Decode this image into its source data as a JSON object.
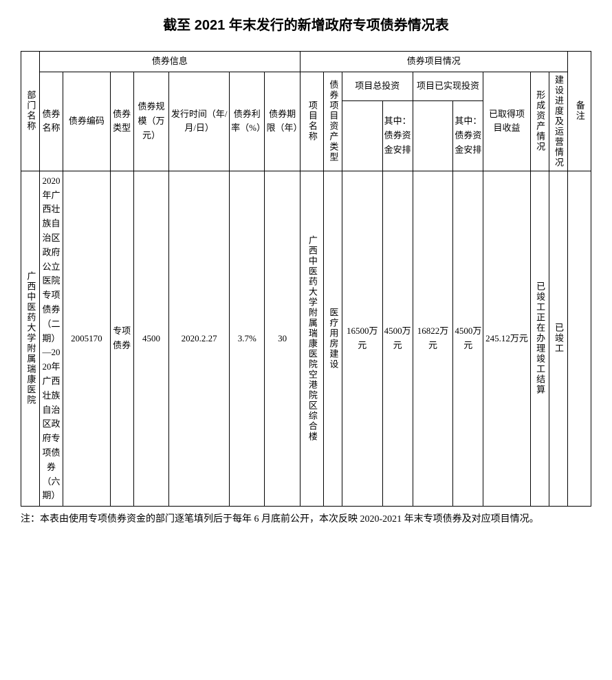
{
  "title": "截至 2021 年末发行的新增政府专项债券情况表",
  "headers": {
    "dept": "部门名称",
    "bond_info": "债券信息",
    "bond_name": "债券名称",
    "bond_code": "债券编码",
    "bond_type": "债券类型",
    "bond_scale": "债券规模（万元）",
    "issue_time": "发行时间（年/月/日）",
    "bond_rate": "债券利率（%）",
    "bond_term": "债券期限（年）",
    "project_info": "债券项目情况",
    "project_name": "项目名称",
    "asset_type": "债券项目资产类型",
    "total_investment": "项目总投资",
    "realized_investment": "项目已实现投资",
    "bond_fund_arrangement": "其中：债券资金安排",
    "project_income": "已取得项目收益",
    "asset_formation": "形成资产情况",
    "construction_progress": "建设进度及运营情况",
    "remark": "备注"
  },
  "row": {
    "dept": "广西中医药大学附属瑞康医院",
    "bond_name": "2020年广西壮族自治区政府公立医院专项债券（二期）—2020年广西壮族自治区政府专项债券（六期）",
    "bond_code": "2005170",
    "bond_type": "专项债券",
    "bond_scale": "4500",
    "issue_time": "2020.2.27",
    "bond_rate": "3.7%",
    "bond_term": "30",
    "project_name": "广西中医药大学附属瑞康医院空港院区综合楼",
    "asset_type": "医疗用房建设",
    "total_investment": "16500万元",
    "total_investment_bond": "4500万元",
    "realized_investment": "16822万元",
    "realized_investment_bond": "4500万元",
    "project_income": "245.12万元",
    "asset_formation": "已竣工正在办理竣工结算",
    "construction_progress": "已竣工",
    "remark": ""
  },
  "footnote": "注：本表由使用专项债券资金的部门逐笔填列后于每年 6 月底前公开，本次反映 2020-2021 年末专项债券及对应项目情况。",
  "styling": {
    "background_color": "#ffffff",
    "text_color": "#000000",
    "border_color": "#000000",
    "title_fontsize": 20,
    "cell_fontsize": 13,
    "footnote_fontsize": 14
  }
}
